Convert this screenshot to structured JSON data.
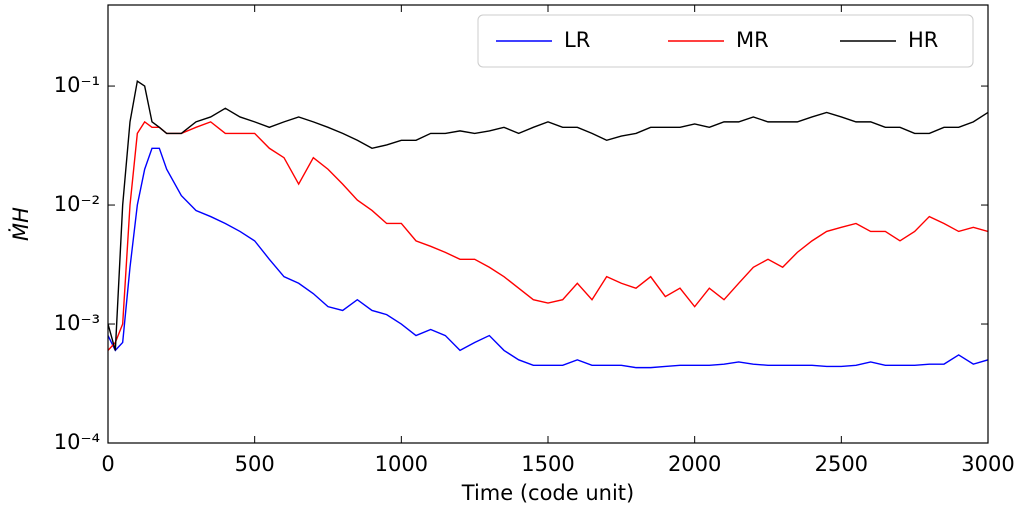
{
  "chart_data": {
    "type": "line",
    "y_label": "ṀH",
    "x_label": "Time (code unit)",
    "log_y": true,
    "legend": "upper right",
    "xlim": [
      0,
      3000
    ],
    "xticks": [
      0,
      500,
      1000,
      1500,
      2000,
      2500,
      3000
    ],
    "ylim": [
      0.0001,
      0.48
    ],
    "yticks": [
      {
        "value": 0.0001,
        "label": "10⁻⁴"
      },
      {
        "value": 0.001,
        "label": "10⁻³"
      },
      {
        "value": 0.01,
        "label": "10⁻²"
      },
      {
        "value": 0.1,
        "label": "10⁻¹"
      }
    ],
    "x": [
      0,
      25,
      50,
      75,
      100,
      125,
      150,
      175,
      200,
      250,
      300,
      350,
      400,
      450,
      500,
      550,
      600,
      650,
      700,
      750,
      800,
      850,
      900,
      950,
      1000,
      1050,
      1100,
      1150,
      1200,
      1250,
      1300,
      1350,
      1400,
      1450,
      1500,
      1550,
      1600,
      1650,
      1700,
      1750,
      1800,
      1850,
      1900,
      1950,
      2000,
      2050,
      2100,
      2150,
      2200,
      2250,
      2300,
      2350,
      2400,
      2450,
      2500,
      2550,
      2600,
      2650,
      2700,
      2750,
      2800,
      2850,
      2900,
      2950,
      3000
    ],
    "series": [
      {
        "name": "LR",
        "color": "#0000ff",
        "values": [
          0.0008,
          0.0006,
          0.0007,
          0.003,
          0.01,
          0.02,
          0.03,
          0.03,
          0.02,
          0.012,
          0.009,
          0.008,
          0.007,
          0.006,
          0.005,
          0.0035,
          0.0025,
          0.0022,
          0.0018,
          0.0014,
          0.0013,
          0.0016,
          0.0013,
          0.0012,
          0.001,
          0.0008,
          0.0009,
          0.0008,
          0.0006,
          0.0007,
          0.0008,
          0.0006,
          0.0005,
          0.00045,
          0.00045,
          0.00045,
          0.0005,
          0.00045,
          0.00045,
          0.00045,
          0.00043,
          0.00043,
          0.00044,
          0.00045,
          0.00045,
          0.00045,
          0.00046,
          0.00048,
          0.00046,
          0.00045,
          0.00045,
          0.00045,
          0.00045,
          0.00044,
          0.00044,
          0.00045,
          0.00048,
          0.00045,
          0.00045,
          0.00045,
          0.00046,
          0.00046,
          0.00055,
          0.00046,
          0.0005
        ]
      },
      {
        "name": "MR",
        "color": "#ff0000",
        "values": [
          0.0006,
          0.0007,
          0.001,
          0.01,
          0.04,
          0.05,
          0.045,
          0.045,
          0.04,
          0.04,
          0.045,
          0.05,
          0.04,
          0.04,
          0.04,
          0.03,
          0.025,
          0.015,
          0.025,
          0.02,
          0.015,
          0.011,
          0.009,
          0.007,
          0.007,
          0.005,
          0.0045,
          0.004,
          0.0035,
          0.0035,
          0.003,
          0.0025,
          0.002,
          0.0016,
          0.0015,
          0.0016,
          0.0022,
          0.0016,
          0.0025,
          0.0022,
          0.002,
          0.0025,
          0.0017,
          0.002,
          0.0014,
          0.002,
          0.0016,
          0.0022,
          0.003,
          0.0035,
          0.003,
          0.004,
          0.005,
          0.006,
          0.0065,
          0.007,
          0.006,
          0.006,
          0.005,
          0.006,
          0.008,
          0.007,
          0.006,
          0.0065,
          0.006
        ]
      },
      {
        "name": "HR",
        "color": "#000000",
        "values": [
          0.001,
          0.0006,
          0.01,
          0.05,
          0.11,
          0.1,
          0.05,
          0.045,
          0.04,
          0.04,
          0.05,
          0.055,
          0.065,
          0.055,
          0.05,
          0.045,
          0.05,
          0.055,
          0.05,
          0.045,
          0.04,
          0.035,
          0.03,
          0.032,
          0.035,
          0.035,
          0.04,
          0.04,
          0.042,
          0.04,
          0.042,
          0.045,
          0.04,
          0.045,
          0.05,
          0.045,
          0.045,
          0.04,
          0.035,
          0.038,
          0.04,
          0.045,
          0.045,
          0.045,
          0.048,
          0.045,
          0.05,
          0.05,
          0.055,
          0.05,
          0.05,
          0.05,
          0.055,
          0.06,
          0.055,
          0.05,
          0.05,
          0.045,
          0.045,
          0.04,
          0.04,
          0.045,
          0.045,
          0.05,
          0.06
        ]
      }
    ]
  }
}
